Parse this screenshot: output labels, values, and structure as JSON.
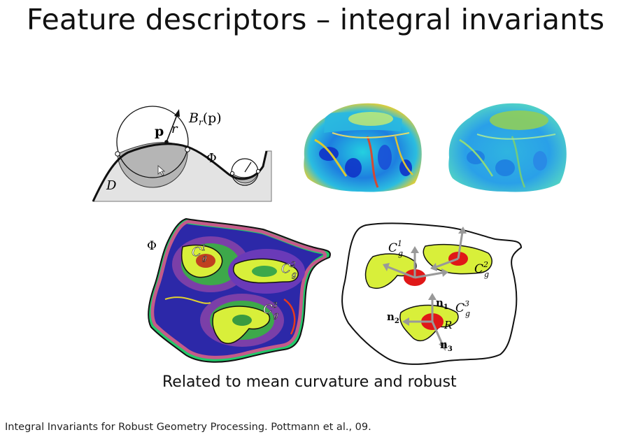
{
  "slide": {
    "title": "Feature descriptors – integral invariants",
    "caption": "Related to mean curvature and robust",
    "citation": "Integral Invariants for Robust Geometry Processing. Pottmann et al., 09."
  },
  "diagram_ball": {
    "ball_label": "B",
    "ball_sub": "r",
    "ball_arg": "(p)",
    "point_label": "p",
    "radius_label": "r",
    "surface_label": "Φ",
    "domain_label": "D"
  },
  "diagram_patch": {
    "surface_label": "Φ",
    "region_labels": [
      {
        "base": "C",
        "sub": "g",
        "sup": "1"
      },
      {
        "base": "C",
        "sub": "g",
        "sup": "2"
      },
      {
        "base": "C",
        "sub": "g",
        "sup": "3"
      }
    ]
  },
  "diagram_normals": {
    "region_labels": [
      {
        "base": "C",
        "sub": "g",
        "sup": "1"
      },
      {
        "base": "C",
        "sub": "g",
        "sup": "2"
      },
      {
        "base": "C",
        "sub": "g",
        "sup": "3"
      }
    ],
    "normal_labels": [
      {
        "base": "n",
        "sub": "1"
      },
      {
        "base": "n",
        "sub": "2"
      },
      {
        "base": "n",
        "sub": "3"
      }
    ],
    "radius_label": "R"
  },
  "colors": {
    "curvature_low": "#1f3fd6",
    "curvature_mid": "#33c3dd",
    "curvature_high": "#e83a1c",
    "feature_region": "#d8ef3a",
    "ball_marker": "#e01818"
  }
}
